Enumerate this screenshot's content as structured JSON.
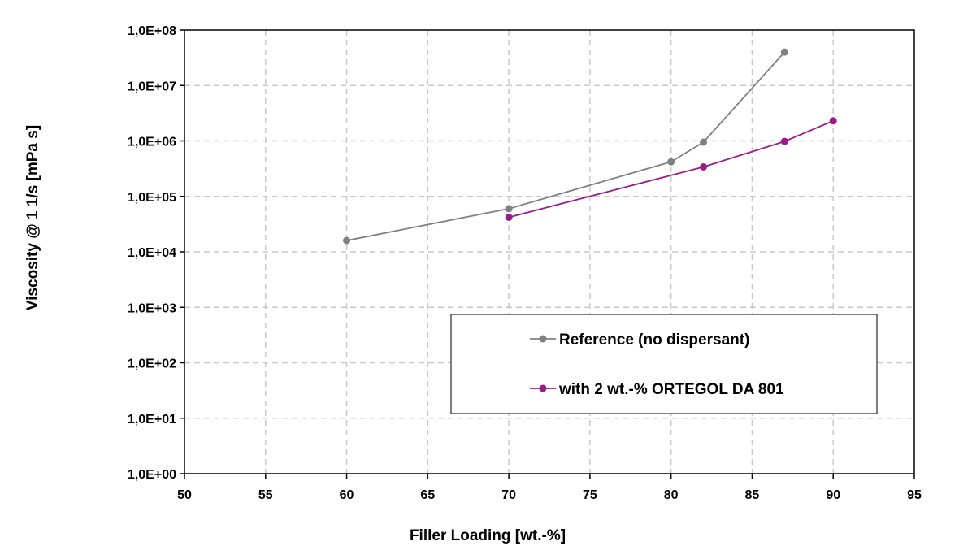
{
  "chart_data": {
    "type": "line",
    "xlabel": "Filler Loading [wt.-%]",
    "ylabel": "Viscosity @ 1 1/s [mPa s]",
    "xlim": [
      50,
      95
    ],
    "ylim": [
      1,
      100000000
    ],
    "y_scale": "log",
    "x_ticks": [
      "50",
      "55",
      "60",
      "65",
      "70",
      "75",
      "80",
      "85",
      "90",
      "95"
    ],
    "y_ticks": [
      "1,0E+00",
      "1,0E+01",
      "1,0E+02",
      "1,0E+03",
      "1,0E+04",
      "1,0E+05",
      "1,0E+06",
      "1,0E+07",
      "1,0E+08"
    ],
    "grid": true,
    "legend_position": "bottom-right",
    "series": [
      {
        "name": "Reference (no dispersant)",
        "color": "#808080",
        "x": [
          60,
          70,
          80,
          82,
          87
        ],
        "y": [
          16000,
          60000,
          420000,
          950000,
          40000000
        ]
      },
      {
        "name": "with 2 wt.-% ORTEGOL DA 801",
        "color": "#9B1B87",
        "x": [
          70,
          82,
          87,
          90
        ],
        "y": [
          42000,
          340000,
          980000,
          2300000
        ]
      }
    ]
  }
}
